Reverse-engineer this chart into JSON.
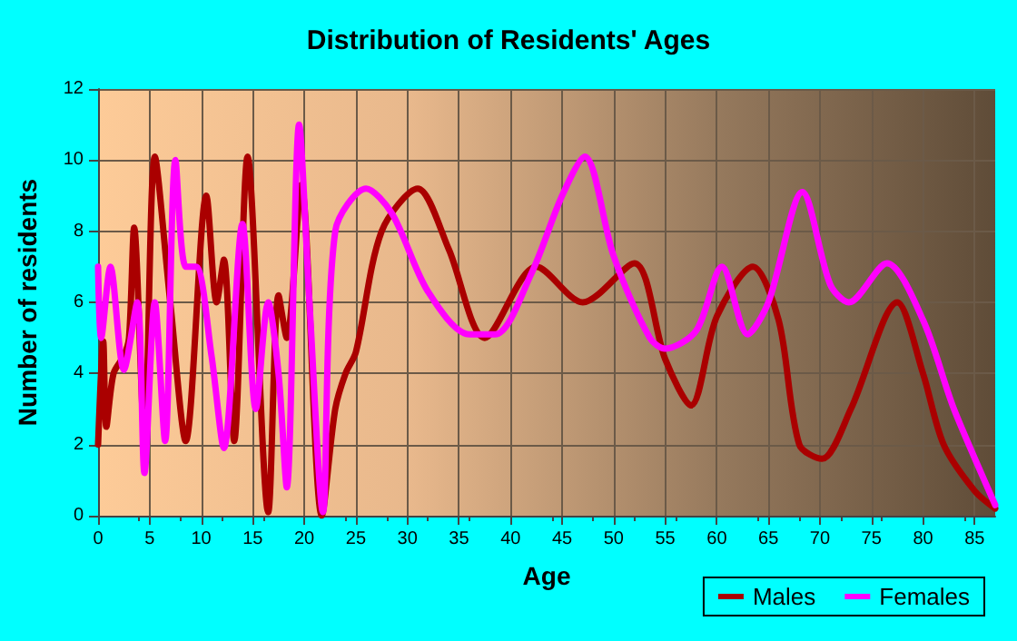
{
  "chart_data": {
    "type": "line",
    "title": "Distribution of Residents' Ages",
    "xlabel": "Age",
    "ylabel": "Number of residents",
    "xlim": [
      0,
      87
    ],
    "xticks": [
      0,
      5,
      10,
      15,
      20,
      25,
      30,
      35,
      40,
      45,
      50,
      55,
      60,
      65,
      70,
      75,
      80,
      85
    ],
    "ylim": [
      0,
      12
    ],
    "yticks": [
      0,
      2,
      4,
      6,
      8,
      10,
      12
    ],
    "grid": true,
    "legend": "bottom right",
    "marker": "none",
    "line_style": "solid",
    "series": [
      {
        "name": "Males",
        "color": "#aa0000",
        "x": [
          0,
          0.5,
          0.8,
          1.5,
          2.5,
          3,
          3.5,
          4.5,
          5.5,
          7,
          8.5,
          10.5,
          11.5,
          12.2,
          13.2,
          14.5,
          16.5,
          17.5,
          18.3,
          19.7,
          21.7,
          23,
          24,
          25,
          27.5,
          31,
          34,
          37.5,
          42.5,
          47,
          52,
          55,
          57.5,
          60,
          63.5,
          66,
          68,
          70.2,
          73,
          77.5,
          80,
          82,
          85,
          87
        ],
        "values": [
          2.0,
          4.9,
          2.5,
          4,
          4.5,
          5,
          8.1,
          2.2,
          10.1,
          6,
          2.1,
          9.0,
          6.0,
          7.2,
          2.1,
          10.1,
          0.1,
          6.2,
          5.0,
          9.3,
          0,
          3.0,
          4,
          4.6,
          8.0,
          9.2,
          7.5,
          5.0,
          7.0,
          6.0,
          7.1,
          4.4,
          3.1,
          5.6,
          7.0,
          5.5,
          2.0,
          1.6,
          3.0,
          6.0,
          4,
          2.0,
          0.7,
          0.2
        ]
      },
      {
        "name": "Females",
        "color": "#ff00ff",
        "x": [
          0,
          0.3,
          1.2,
          2.5,
          3.8,
          4.5,
          5.5,
          6.5,
          7.5,
          8.5,
          9.5,
          11,
          12.2,
          14,
          15.3,
          16.5,
          17.5,
          18.3,
          19.5,
          20.5,
          21.8,
          23,
          26,
          28.5,
          32,
          36,
          38.5,
          42,
          45,
          47.2,
          50,
          53.5,
          55,
          58,
          60.5,
          63,
          65,
          68.3,
          71,
          72.8,
          76.5,
          80,
          83,
          87
        ],
        "values": [
          7.0,
          5,
          7.0,
          4.1,
          6.0,
          1.2,
          6.0,
          2.1,
          10.0,
          7.0,
          7.0,
          4.5,
          1.9,
          8.2,
          3.0,
          6.0,
          4,
          0.8,
          11.0,
          6,
          0.1,
          8.0,
          9.2,
          8.5,
          6.3,
          5.1,
          5.1,
          6.8,
          9.0,
          10.1,
          7.3,
          5.0,
          4.7,
          5.2,
          7.0,
          5.1,
          6,
          9.1,
          6.5,
          6.0,
          7.1,
          5.5,
          3,
          0.3
        ]
      }
    ]
  }
}
